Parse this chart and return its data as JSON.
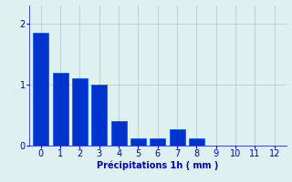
{
  "categories": [
    0,
    1,
    2,
    3,
    4,
    5,
    6,
    7,
    8,
    9,
    10,
    11,
    12
  ],
  "values": [
    1.85,
    1.2,
    1.1,
    1.0,
    0.4,
    0.12,
    0.12,
    0.27,
    0.12,
    0.0,
    0.0,
    0.0,
    0.0
  ],
  "bar_color": "#0033cc",
  "bar_edge_color": "#0055ff",
  "background_color": "#dff0f0",
  "grid_color": "#aac8c8",
  "xlabel": "Précipitations 1h ( mm )",
  "xlim": [
    -0.6,
    12.6
  ],
  "ylim": [
    0,
    2.3
  ],
  "yticks": [
    0,
    1,
    2
  ],
  "xticks": [
    0,
    1,
    2,
    3,
    4,
    5,
    6,
    7,
    8,
    9,
    10,
    11,
    12
  ],
  "xlabel_color": "#0000cc",
  "tick_color": "#0000cc",
  "axis_color": "#0000cc",
  "xlabel_fontsize": 7,
  "tick_fontsize": 7,
  "bar_width": 0.8
}
